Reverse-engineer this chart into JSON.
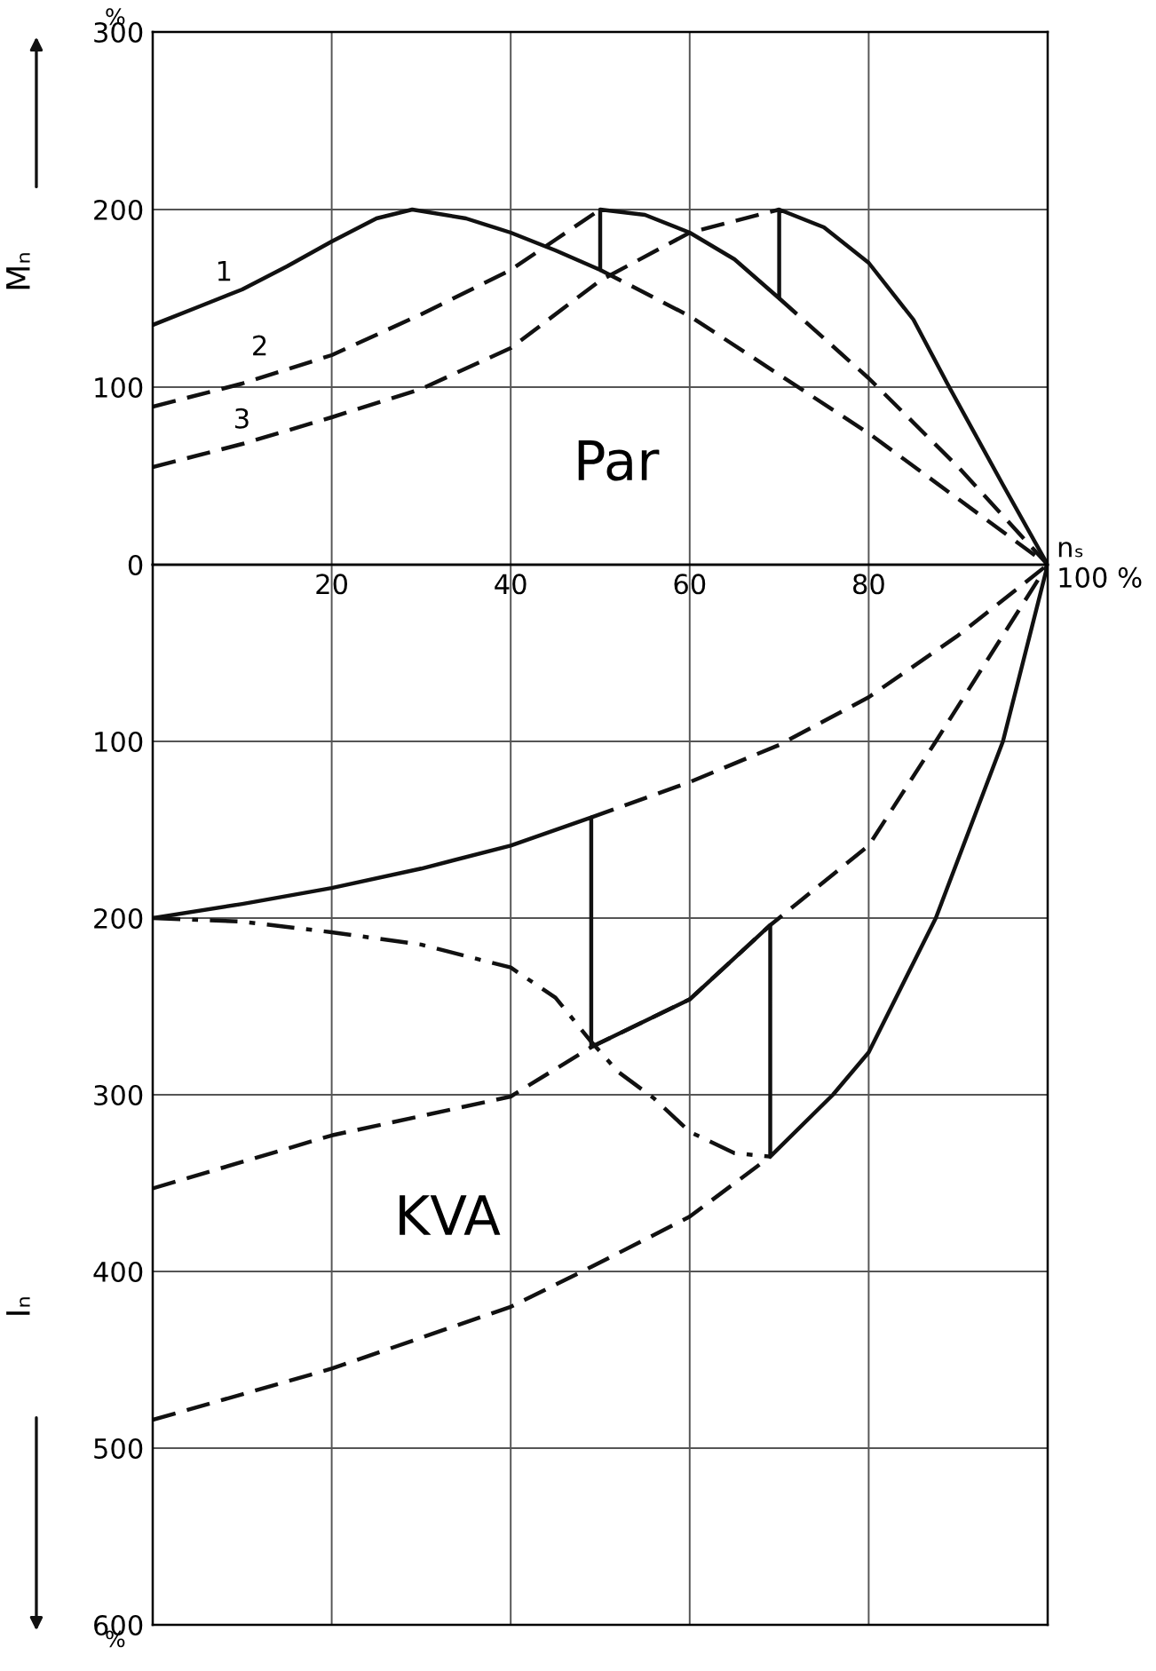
{
  "chart_data": [
    {
      "type": "line",
      "ylabel": "Mₙ",
      "xlabel": "nₛ\n100 %",
      "xlim": [
        0,
        100
      ],
      "ylim": [
        0,
        300
      ],
      "xticks": [
        {
          "value": 0,
          "label": null
        },
        20,
        40,
        60,
        80,
        {
          "value": 100,
          "label": null
        }
      ],
      "yticks": [
        0,
        100,
        200,
        300
      ],
      "grid": true,
      "series": [
        {
          "color": "#111111",
          "line_style": "solid",
          "x": [
            0,
            5,
            10,
            15,
            20,
            25,
            29,
            35,
            40,
            45,
            50,
            50,
            55,
            60,
            65,
            70,
            70,
            75,
            80,
            85,
            89,
            95,
            100
          ],
          "values": [
            135,
            145,
            155,
            168,
            182,
            195,
            200,
            195,
            187,
            177,
            166,
            200,
            197,
            187,
            172,
            150,
            200,
            190,
            170,
            138,
            100,
            45,
            0
          ]
        },
        {
          "color": "#111111",
          "line_style": "dashed",
          "x": [
            50,
            60,
            70,
            80,
            90,
            100
          ],
          "values": [
            166,
            140,
            107,
            74,
            37,
            0
          ]
        },
        {
          "color": "#111111",
          "line_style": "dashed",
          "x": [
            0,
            10,
            20,
            30,
            40,
            45,
            50
          ],
          "values": [
            89,
            102,
            118,
            141,
            166,
            183,
            200
          ]
        },
        {
          "color": "#111111",
          "line_style": "dashed",
          "x": [
            70,
            80,
            90,
            100
          ],
          "values": [
            150,
            105,
            55,
            0
          ]
        },
        {
          "color": "#111111",
          "line_style": "dashed",
          "x": [
            0,
            10,
            20,
            30,
            40,
            50,
            60,
            70
          ],
          "values": [
            55,
            68,
            83,
            99,
            122,
            160,
            187,
            200
          ]
        }
      ],
      "annotations": [
        "%",
        "Par",
        "1",
        "2",
        "3"
      ]
    },
    {
      "type": "line",
      "ylabel": "Iₙ",
      "xlim": [
        0,
        100
      ],
      "ylim": [
        600,
        0
      ],
      "xticks": [
        0,
        20,
        40,
        60,
        80,
        100
      ],
      "yticks": [
        {
          "value": 0,
          "label": null
        },
        100,
        200,
        300,
        400,
        500,
        600
      ],
      "grid": true,
      "tick_labels": "y",
      "series": [
        {
          "color": "#111111",
          "line_style": "solid",
          "x": [
            0,
            10,
            20,
            30,
            40,
            49,
            49,
            60,
            69,
            69,
            76,
            80,
            87.5,
            95,
            100
          ],
          "values": [
            200,
            192,
            183,
            172,
            159,
            143,
            273,
            246,
            204,
            335,
            300,
            276,
            200,
            100,
            0
          ]
        },
        {
          "color": "#111111",
          "line_style": "dashed",
          "x": [
            49,
            60,
            70,
            80,
            90,
            100
          ],
          "values": [
            143,
            123,
            102,
            75,
            40,
            0
          ]
        },
        {
          "color": "#111111",
          "line_style": "dashed",
          "x": [
            0,
            20,
            40,
            49,
            60,
            69,
            80,
            87.5,
            100
          ],
          "values": [
            353,
            323,
            301,
            273,
            246,
            204,
            159,
            100,
            0
          ]
        },
        {
          "color": "#111111",
          "line_style": "dashed",
          "x": [
            0,
            20,
            40,
            48,
            60,
            69
          ],
          "values": [
            484,
            455,
            420,
            400,
            369,
            335
          ]
        },
        {
          "color": "#111111",
          "line_style": "dashdot",
          "x": [
            0,
            10,
            20,
            30,
            40,
            45,
            49,
            52,
            56,
            60,
            65,
            69
          ],
          "values": [
            200,
            202,
            208,
            215,
            228,
            245,
            270,
            287,
            302,
            321,
            333,
            335
          ]
        }
      ],
      "annotations": [
        "%",
        "KVA"
      ]
    }
  ]
}
